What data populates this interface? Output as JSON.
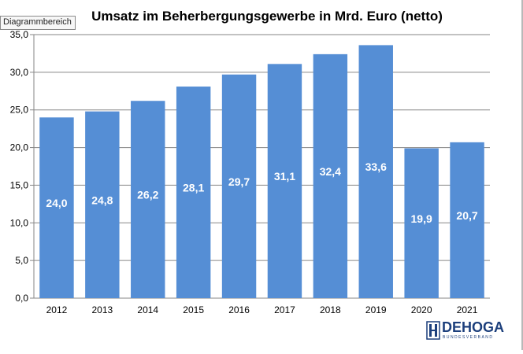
{
  "chart_data": {
    "type": "bar",
    "title": "Umsatz im Beherbergungsgewerbe in Mrd. Euro (netto)",
    "categories": [
      "2012",
      "2013",
      "2014",
      "2015",
      "2016",
      "2017",
      "2018",
      "2019",
      "2020",
      "2021"
    ],
    "values": [
      24.0,
      24.8,
      26.2,
      28.1,
      29.7,
      31.1,
      32.4,
      33.6,
      19.9,
      20.7
    ],
    "value_labels": [
      "24,0",
      "24,8",
      "26,2",
      "28,1",
      "29,7",
      "31,1",
      "32,4",
      "33,6",
      "19,9",
      "20,7"
    ],
    "ylim": [
      0,
      35
    ],
    "yticks": [
      0,
      5,
      10,
      15,
      20,
      25,
      30,
      35
    ],
    "ytick_labels": [
      "0,0",
      "5,0",
      "10,0",
      "15,0",
      "20,0",
      "25,0",
      "30,0",
      "35,0"
    ],
    "xlabel": "",
    "ylabel": "",
    "grid": true,
    "legend": "none",
    "bar_color": "#558ed5",
    "gridline_color": "#868686",
    "label_color": "#ffffff"
  },
  "tooltip": {
    "text": "Diagrammbereich"
  },
  "logo": {
    "name": "DEHOGA",
    "subtitle": "BUNDESVERBAND",
    "icon": "dehoga-emblem-icon"
  }
}
